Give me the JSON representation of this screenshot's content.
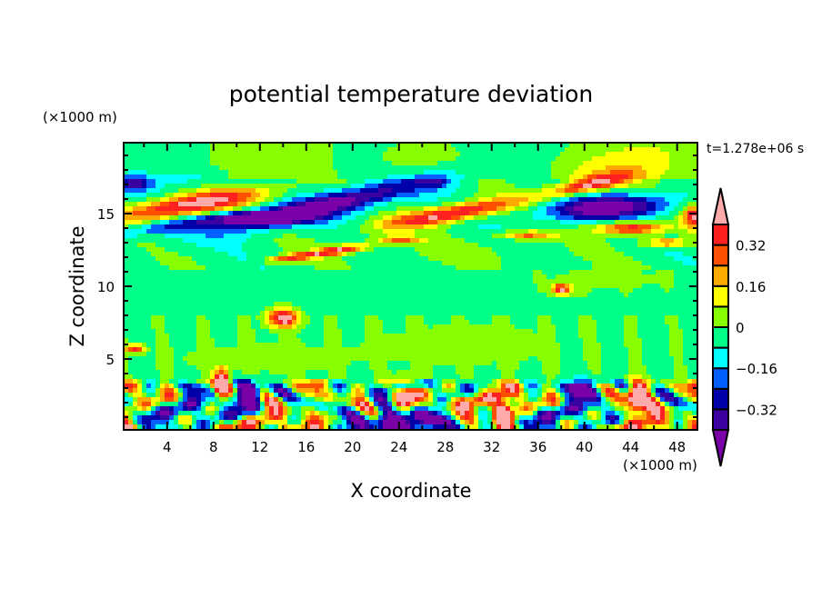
{
  "chart_data": {
    "type": "heatmap",
    "subtype": "filled-contour",
    "title": "potential temperature deviation",
    "xlabel": "X coordinate",
    "ylabel": "Z coordinate",
    "x_unit_label": "(×1000 m)",
    "y_unit_label": "(×1000 m)",
    "time_label": "t=1.278e+06 s",
    "xlim": [
      0.25,
      49.75
    ],
    "ylim": [
      0.125,
      19.875
    ],
    "x_ticks": [
      4,
      8,
      12,
      16,
      20,
      24,
      28,
      32,
      36,
      40,
      44,
      48
    ],
    "y_ticks": [
      5,
      10,
      15
    ],
    "grid": false,
    "colorbar": {
      "position": "right",
      "levels": [
        -0.4,
        -0.32,
        -0.24,
        -0.16,
        -0.08,
        0,
        0.08,
        0.16,
        0.24,
        0.32,
        0.4
      ],
      "tick_labels": [
        "0.32",
        "0.16",
        "0",
        "−0.16",
        "−0.32"
      ],
      "tick_values": [
        0.32,
        0.16,
        0,
        -0.16,
        -0.32
      ],
      "colors": [
        "#7a00a8",
        "#3a00a0",
        "#0000a8",
        "#0060ff",
        "#00ffff",
        "#00ff88",
        "#88ff00",
        "#ffff00",
        "#ffaa00",
        "#ff5000",
        "#ff2020",
        "#ffaaaa"
      ],
      "extend": "both"
    },
    "regions": [
      {
        "x": 6,
        "z": 15.6,
        "sx": 6.5,
        "sz": 0.75,
        "slope": 0.13,
        "value": 0.5
      },
      {
        "x": 5,
        "z": 14.2,
        "sx": 7,
        "sz": 0.5,
        "slope": 0.1,
        "value": -0.22
      },
      {
        "x": 1.2,
        "z": 17.1,
        "sx": 1.5,
        "sz": 0.6,
        "slope": 0,
        "value": -0.28
      },
      {
        "x": 6,
        "z": 17.3,
        "sx": 3,
        "sz": 0.6,
        "slope": 0,
        "value": -0.1
      },
      {
        "x": 18,
        "z": 15.6,
        "sx": 8,
        "sz": 0.8,
        "slope": 0.18,
        "value": -0.45
      },
      {
        "x": 12,
        "z": 14.7,
        "sx": 4,
        "sz": 0.5,
        "slope": 0,
        "value": -0.35
      },
      {
        "x": 28.5,
        "z": 15,
        "sx": 6,
        "sz": 0.6,
        "slope": 0.14,
        "value": 0.47
      },
      {
        "x": 27,
        "z": 17.2,
        "sx": 1.5,
        "sz": 0.4,
        "slope": 0,
        "value": -0.2
      },
      {
        "x": 42,
        "z": 15.4,
        "sx": 5.5,
        "sz": 0.8,
        "slope": 0.05,
        "value": -0.45
      },
      {
        "x": 40.5,
        "z": 17,
        "sx": 3.5,
        "sz": 0.5,
        "slope": 0.15,
        "value": 0.45
      },
      {
        "x": 44,
        "z": 14,
        "sx": 3,
        "sz": 0.45,
        "slope": 0,
        "value": 0.45
      },
      {
        "x": 49.5,
        "z": 14.8,
        "sx": 1,
        "sz": 0.8,
        "slope": 0,
        "value": 0.45
      },
      {
        "x": 42,
        "z": 18,
        "sx": 4,
        "sz": 1,
        "slope": 0,
        "value": 0.12
      },
      {
        "x": 26,
        "z": 19,
        "sx": 4,
        "sz": 1.2,
        "slope": 0,
        "value": 0.06
      },
      {
        "x": 46,
        "z": 19,
        "sx": 4,
        "sz": 1.2,
        "slope": 0,
        "value": 0.06
      },
      {
        "x": 19,
        "z": 12.5,
        "sx": 2.5,
        "sz": 0.3,
        "slope": 0.1,
        "value": 0.42
      },
      {
        "x": 15,
        "z": 12,
        "sx": 2.5,
        "sz": 0.25,
        "slope": 0.1,
        "value": 0.35
      },
      {
        "x": 24,
        "z": 13.2,
        "sx": 2,
        "sz": 0.25,
        "slope": 0,
        "value": 0.3
      },
      {
        "x": 35,
        "z": 13.5,
        "sx": 2.5,
        "sz": 0.3,
        "slope": 0,
        "value": 0.3
      },
      {
        "x": 47,
        "z": 13,
        "sx": 2,
        "sz": 0.3,
        "slope": 0,
        "value": 0.32
      },
      {
        "x": 30,
        "z": 12.3,
        "sx": 8,
        "sz": 0.8,
        "slope": 0,
        "value": 0.05
      },
      {
        "x": 14,
        "z": 7.8,
        "sx": 1.3,
        "sz": 0.6,
        "slope": 0,
        "value": 0.5
      },
      {
        "x": 38,
        "z": 9.8,
        "sx": 0.8,
        "sz": 0.4,
        "slope": 0,
        "value": 0.45
      },
      {
        "x": 1.2,
        "z": 5.7,
        "sx": 0.8,
        "sz": 0.3,
        "slope": 0,
        "value": 0.4
      },
      {
        "x": 30,
        "z": 6,
        "sx": 9,
        "sz": 1.6,
        "slope": 0,
        "value": 0.06
      },
      {
        "x": 12,
        "z": 5,
        "sx": 8,
        "sz": 1.2,
        "slope": 0,
        "value": 0.06
      },
      {
        "x": 42,
        "z": 10.5,
        "sx": 6,
        "sz": 0.9,
        "slope": 0,
        "value": 0.05
      },
      {
        "x": 8.7,
        "z": 3.3,
        "sx": 0.6,
        "sz": 0.9,
        "slope": 0,
        "value": 0.7
      },
      {
        "x": 24.5,
        "z": 2.5,
        "sx": 1.2,
        "sz": 0.9,
        "slope": 0,
        "value": 0.7
      },
      {
        "x": 44.5,
        "z": 2.2,
        "sx": 1,
        "sz": 1.2,
        "slope": 0,
        "value": 0.7
      },
      {
        "x": 33,
        "z": 1.3,
        "sx": 0.8,
        "sz": 0.8,
        "slope": 0,
        "value": 0.7
      },
      {
        "x": 24.5,
        "z": 0.6,
        "sx": 3,
        "sz": 0.8,
        "slope": 0,
        "value": -0.7
      },
      {
        "x": 11,
        "z": 2.5,
        "sx": 1.2,
        "sz": 0.9,
        "slope": 0,
        "value": -0.6
      },
      {
        "x": 40,
        "z": 3,
        "sx": 1.5,
        "sz": 0.6,
        "slope": 0,
        "value": -0.5
      }
    ]
  }
}
